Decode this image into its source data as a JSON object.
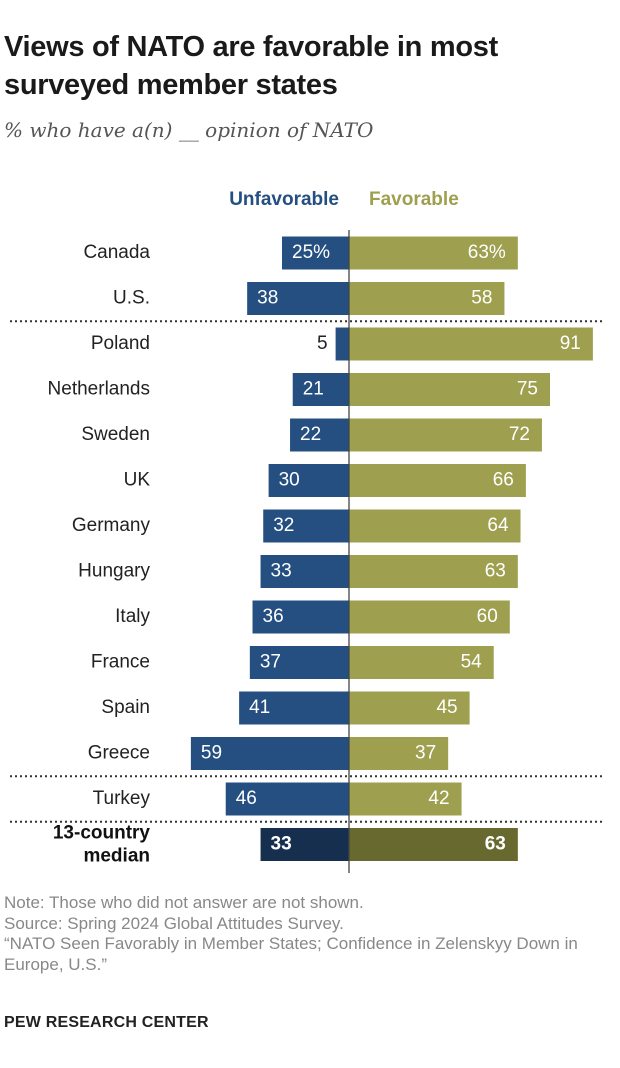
{
  "title": "Views of NATO are favorable in most surveyed member states",
  "subtitle": "% who have a(n) __ opinion of NATO",
  "note": "Note: Those who did not answer are not shown.",
  "source": "Source: Spring 2024 Global Attitudes Survey.",
  "report_title": "“NATO Seen Favorably in Member States; Confidence in Zelenskyy Down in Europe, U.S.”",
  "credit": "PEW RESEARCH CENTER",
  "colors": {
    "unfavorable": "#244f80",
    "favorable": "#9ea04f",
    "median_unfavorable": "#162f4f",
    "median_favorable": "#67692f",
    "unfavorable_header": "#244f80",
    "favorable_header": "#9ea04f"
  },
  "chart_data": {
    "type": "bar",
    "orientation": "horizontal-diverging",
    "series": [
      {
        "name": "Unfavorable",
        "values": [
          25,
          38,
          5,
          21,
          22,
          30,
          32,
          33,
          36,
          37,
          41,
          59,
          46,
          33
        ]
      },
      {
        "name": "Favorable",
        "values": [
          63,
          58,
          91,
          75,
          72,
          66,
          64,
          63,
          60,
          54,
          45,
          37,
          42,
          63
        ]
      }
    ],
    "categories": [
      "Canada",
      "U.S.",
      "Poland",
      "Netherlands",
      "Sweden",
      "UK",
      "Germany",
      "Hungary",
      "Italy",
      "France",
      "Spain",
      "Greece",
      "Turkey",
      "13-country median"
    ],
    "value_labels": {
      "unfavorable": [
        "25%",
        "38",
        "5",
        "21",
        "22",
        "30",
        "32",
        "33",
        "36",
        "37",
        "41",
        "59",
        "46",
        "33"
      ],
      "favorable": [
        "63%",
        "58",
        "91",
        "75",
        "72",
        "66",
        "64",
        "63",
        "60",
        "54",
        "45",
        "37",
        "42",
        "63"
      ]
    },
    "median_category": "13-country median",
    "separators_after": [
      "U.S.",
      "Greece",
      "Turkey"
    ],
    "xlim": [
      0,
      100
    ],
    "legend_placement": "top-center",
    "grid": false
  }
}
